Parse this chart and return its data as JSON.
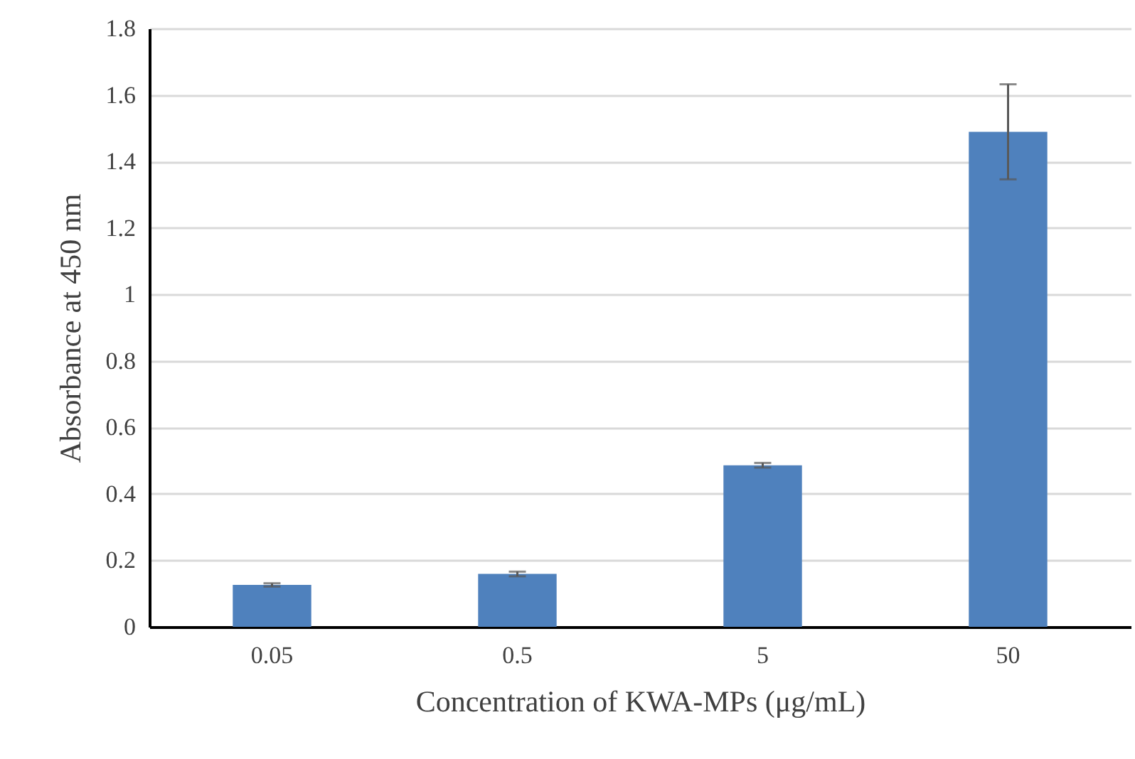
{
  "chart_data": {
    "type": "bar",
    "xlabel": "Concentration of KWA-MPs (μg/mL)",
    "ylabel": "Absorbance at 450 nm",
    "categories": [
      "0.05",
      "0.5",
      "5",
      "50"
    ],
    "values": [
      0.126,
      0.159,
      0.486,
      1.489
    ],
    "errors": [
      0.005,
      0.007,
      0.007,
      0.143
    ],
    "color": "#4f81bd",
    "ylim": [
      0,
      1.8
    ],
    "yticks": [
      0,
      0.2,
      0.4,
      0.6,
      0.8,
      1,
      1.2,
      1.4,
      1.6,
      1.8
    ],
    "grid": "y"
  }
}
